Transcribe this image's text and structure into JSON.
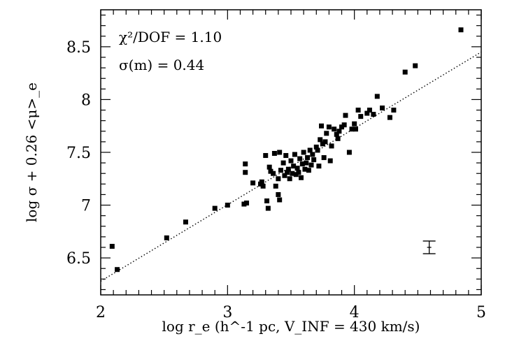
{
  "chart_data": {
    "type": "scatter",
    "title": "",
    "xlabel": "log r_e (h^-1 pc, V_INF = 430 km/s)",
    "ylabel": "log σ + 0.26 <μ>_e",
    "xlim": [
      2,
      5
    ],
    "ylim": [
      6.15,
      8.85
    ],
    "x_ticks": [
      "2",
      "3",
      "4",
      "5"
    ],
    "y_ticks": [
      "6.5",
      "7",
      "7.5",
      "8",
      "8.5"
    ],
    "grid": false,
    "annotations": [
      "χ²/DOF = 1.10",
      "σ(m) = 0.44"
    ],
    "fit_line": {
      "x": [
        2,
        5
      ],
      "y": [
        6.28,
        8.45
      ],
      "style": "dotted"
    },
    "error_bar": {
      "x": 4.59,
      "y": 6.6,
      "yerr": 0.06
    },
    "series": [
      {
        "values": [
          [
            2.09,
            6.61
          ],
          [
            2.13,
            6.39
          ],
          [
            2.52,
            6.69
          ],
          [
            2.67,
            6.84
          ],
          [
            2.9,
            6.97
          ],
          [
            3.0,
            7.0
          ],
          [
            3.13,
            7.01
          ],
          [
            3.15,
            7.02
          ],
          [
            3.14,
            7.39
          ],
          [
            3.14,
            7.31
          ],
          [
            3.2,
            7.21
          ],
          [
            3.26,
            7.2
          ],
          [
            3.27,
            7.22
          ],
          [
            3.28,
            7.18
          ],
          [
            3.31,
            7.04
          ],
          [
            3.32,
            6.97
          ],
          [
            3.3,
            7.47
          ],
          [
            3.33,
            7.36
          ],
          [
            3.34,
            7.32
          ],
          [
            3.36,
            7.3
          ],
          [
            3.38,
            7.18
          ],
          [
            3.37,
            7.49
          ],
          [
            3.4,
            7.25
          ],
          [
            3.4,
            7.1
          ],
          [
            3.41,
            7.05
          ],
          [
            3.41,
            7.5
          ],
          [
            3.42,
            7.33
          ],
          [
            3.44,
            7.4
          ],
          [
            3.45,
            7.28
          ],
          [
            3.46,
            7.47
          ],
          [
            3.47,
            7.31
          ],
          [
            3.48,
            7.34
          ],
          [
            3.49,
            7.25
          ],
          [
            3.5,
            7.42
          ],
          [
            3.51,
            7.3
          ],
          [
            3.52,
            7.37
          ],
          [
            3.53,
            7.48
          ],
          [
            3.54,
            7.29
          ],
          [
            3.55,
            7.35
          ],
          [
            3.56,
            7.31
          ],
          [
            3.57,
            7.44
          ],
          [
            3.58,
            7.26
          ],
          [
            3.59,
            7.39
          ],
          [
            3.6,
            7.5
          ],
          [
            3.61,
            7.34
          ],
          [
            3.62,
            7.4
          ],
          [
            3.63,
            7.45
          ],
          [
            3.64,
            7.33
          ],
          [
            3.65,
            7.52
          ],
          [
            3.66,
            7.38
          ],
          [
            3.67,
            7.48
          ],
          [
            3.68,
            7.43
          ],
          [
            3.7,
            7.55
          ],
          [
            3.71,
            7.52
          ],
          [
            3.72,
            7.37
          ],
          [
            3.73,
            7.62
          ],
          [
            3.74,
            7.75
          ],
          [
            3.75,
            7.58
          ],
          [
            3.76,
            7.45
          ],
          [
            3.77,
            7.6
          ],
          [
            3.78,
            7.68
          ],
          [
            3.8,
            7.74
          ],
          [
            3.81,
            7.42
          ],
          [
            3.82,
            7.56
          ],
          [
            3.84,
            7.72
          ],
          [
            3.86,
            7.67
          ],
          [
            3.87,
            7.63
          ],
          [
            3.88,
            7.7
          ],
          [
            3.9,
            7.74
          ],
          [
            3.92,
            7.76
          ],
          [
            3.93,
            7.85
          ],
          [
            3.96,
            7.5
          ],
          [
            3.98,
            7.72
          ],
          [
            4.0,
            7.77
          ],
          [
            4.01,
            7.72
          ],
          [
            4.03,
            7.9
          ],
          [
            4.05,
            7.84
          ],
          [
            4.1,
            7.87
          ],
          [
            4.12,
            7.9
          ],
          [
            4.15,
            7.86
          ],
          [
            4.18,
            8.03
          ],
          [
            4.22,
            7.92
          ],
          [
            4.28,
            7.83
          ],
          [
            4.31,
            7.9
          ],
          [
            4.4,
            8.26
          ],
          [
            4.48,
            8.32
          ],
          [
            4.84,
            8.66
          ]
        ]
      }
    ]
  }
}
